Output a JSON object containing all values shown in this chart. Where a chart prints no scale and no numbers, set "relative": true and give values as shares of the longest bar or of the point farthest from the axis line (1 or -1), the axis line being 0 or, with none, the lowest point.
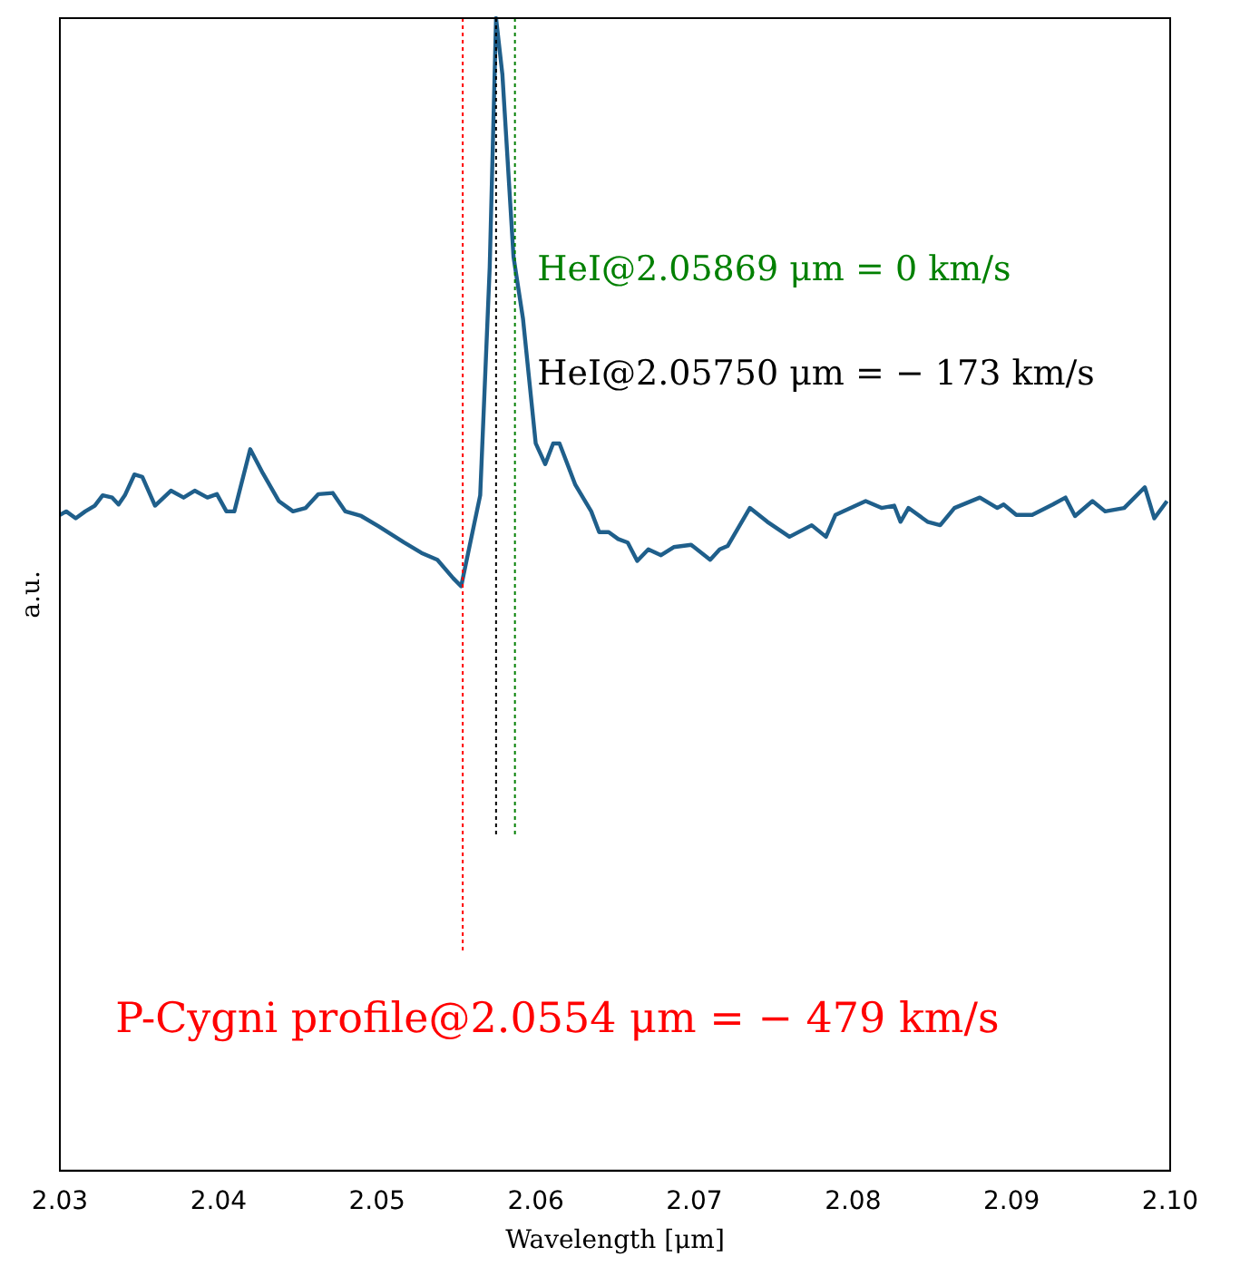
{
  "chart_data": {
    "type": "line",
    "xlabel": "Wavelength [μm]",
    "ylabel": "a.u.",
    "relative": true,
    "xlim": [
      2.03,
      2.1
    ],
    "xticks": [
      2.03,
      2.04,
      2.05,
      2.06,
      2.07,
      2.08,
      2.09,
      {
        "value": 2.1,
        "label": "2.10"
      }
    ],
    "tick_labels": "x",
    "grid": false,
    "legend": false,
    "marker": "none",
    "line_style": "solid",
    "series": [
      {
        "color": "#1f5f8b",
        "x": [
          2.03,
          2.0304,
          2.031,
          2.0316,
          2.0322,
          2.0327,
          2.0333,
          2.0337,
          2.0341,
          2.0347,
          2.0352,
          2.036,
          2.037,
          2.0378,
          2.0385,
          2.0393,
          2.0399,
          2.0405,
          2.041,
          2.042,
          2.0428,
          2.0438,
          2.0447,
          2.0455,
          2.0463,
          2.0472,
          2.048,
          2.049,
          2.0501,
          2.0517,
          2.0528,
          2.0538,
          2.0548,
          2.0553,
          2.0565,
          2.0571,
          2.0575,
          2.0579,
          2.0586,
          2.0592,
          2.06,
          2.0606,
          2.0611,
          2.0615,
          2.0625,
          2.0635,
          2.064,
          2.0646,
          2.0652,
          2.0658,
          2.0664,
          2.0671,
          2.0679,
          2.0687,
          2.0698,
          2.071,
          2.0716,
          2.0721,
          2.0735,
          2.0746,
          2.076,
          2.0774,
          2.0783,
          2.0789,
          2.0808,
          2.0818,
          2.0826,
          2.083,
          2.0835,
          2.0847,
          2.0855,
          2.0864,
          2.088,
          2.0891,
          2.0895,
          2.0903,
          2.0913,
          2.0926,
          2.0934,
          2.094,
          2.0951,
          2.0959,
          2.0971,
          2.0984,
          2.099,
          2.0998
        ],
        "values": [
          0.569,
          0.572,
          0.566,
          0.572,
          0.577,
          0.586,
          0.584,
          0.578,
          0.586,
          0.604,
          0.602,
          0.577,
          0.59,
          0.584,
          0.59,
          0.584,
          0.587,
          0.572,
          0.572,
          0.626,
          0.605,
          0.581,
          0.572,
          0.575,
          0.587,
          0.588,
          0.572,
          0.568,
          0.559,
          0.545,
          0.536,
          0.53,
          0.514,
          0.507,
          0.586,
          0.784,
          1.0,
          0.951,
          0.793,
          0.739,
          0.631,
          0.613,
          0.631,
          0.631,
          0.595,
          0.572,
          0.554,
          0.554,
          0.548,
          0.545,
          0.529,
          0.539,
          0.534,
          0.541,
          0.543,
          0.53,
          0.539,
          0.542,
          0.575,
          0.563,
          0.55,
          0.56,
          0.55,
          0.569,
          0.581,
          0.575,
          0.577,
          0.563,
          0.575,
          0.563,
          0.56,
          0.575,
          0.584,
          0.575,
          0.578,
          0.569,
          0.569,
          0.578,
          0.584,
          0.568,
          0.581,
          0.572,
          0.575,
          0.593,
          0.566,
          0.581
        ]
      }
    ],
    "ref_lines": [
      {
        "axis": "x",
        "value": 2.0554,
        "label": "P-Cygni profile@2.0554 μm = − 479 km/s",
        "color": "#ff0000",
        "line_style": "dotted"
      },
      {
        "axis": "x",
        "value": 2.0575,
        "label": "HeI@2.05750 μm = − 173 km/s",
        "color": "#000000",
        "line_style": "dotted"
      },
      {
        "axis": "x",
        "value": 2.05869,
        "label": "HeI@2.05869 μm = 0 km/s",
        "color": "#008000",
        "line_style": "dotted"
      }
    ]
  }
}
